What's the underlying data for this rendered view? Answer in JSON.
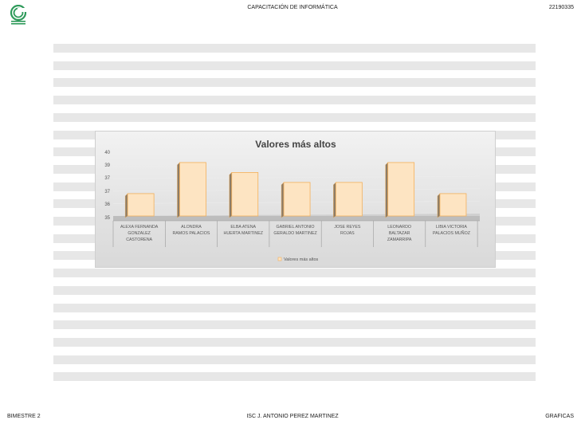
{
  "header": {
    "title": "CAPACITACIÓN DE INFORMÁTICA",
    "code": "22190335"
  },
  "footer": {
    "left": "BIMESTRE 2",
    "center": "ISC J. ANTONIO PEREZ MARTINEZ",
    "right": "GRAFICAS"
  },
  "icons": {
    "logo": "green-circular-logo-icon"
  },
  "colors": {
    "bar_fill": "#fde4c2",
    "bar_stroke": "#f3b05a",
    "logo": "#2e9a5a",
    "stripe": "#e7e7e7"
  },
  "chart_data": {
    "type": "bar",
    "title": "Valores más altos",
    "categories": [
      [
        "ALEXA FERNANDA",
        "GONZALEZ",
        "CASTORENA"
      ],
      [
        "ALONDRA",
        "RAMOS PALACIOS"
      ],
      [
        "ELBA ATENA",
        "HUERTA MARTINEZ"
      ],
      [
        "GABRIEL ANTONIO",
        "GERALDO MARTINEZ"
      ],
      [
        "JOSE REYES",
        "ROJAS"
      ],
      [
        "LEONARDO",
        "BALTAZAR",
        "ZAMARRIPA"
      ],
      [
        "LIBIA VICTORIA",
        "PALACIOS MUÑOZ"
      ]
    ],
    "series": [
      {
        "name": "Valores más altos",
        "values": [
          36.8,
          39.3,
          38.5,
          37.7,
          37.7,
          39.3,
          36.8
        ]
      }
    ],
    "yticks": [
      "40",
      "39",
      "37",
      "37",
      "36",
      "35"
    ],
    "ylim": [
      35,
      40
    ],
    "legend_position": "bottom",
    "grid": true
  }
}
